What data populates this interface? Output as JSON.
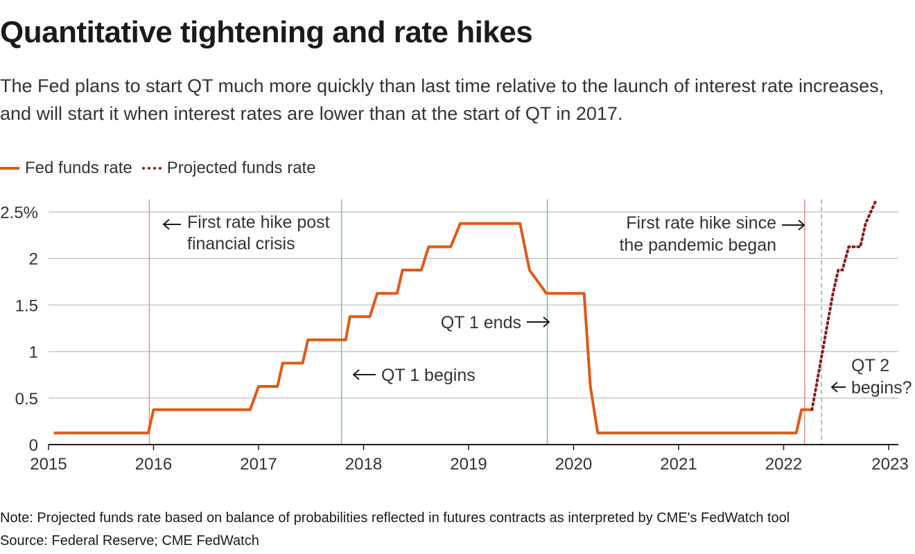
{
  "title": "Quantitative tightening and rate hikes",
  "subtitle": "The Fed plans to start QT much more quickly than last time relative to the launch of interest rate increases, and will start it when interest rates are lower than at the start of QT in 2017.",
  "legend": {
    "fed_funds": "Fed funds rate",
    "projected": "Projected funds rate"
  },
  "colors": {
    "fed_funds": "#e05a16",
    "projected": "#8b1a1a",
    "hike_line": "#e0958f",
    "qt_line": "#7cc48a",
    "grid": "#c8c8c8",
    "axis": "#1a1a1a",
    "text": "#333333"
  },
  "notes": {
    "note": "Note: Projected funds rate based on balance of probabilities reflected in futures contracts as interpreted by CME's FedWatch tool",
    "source": "Source: Federal Reserve; CME FedWatch"
  },
  "chart_data": {
    "type": "line",
    "title": "Quantitative tightening and rate hikes",
    "xlabel": "",
    "ylabel": "",
    "xlim": [
      2015,
      2023
    ],
    "ylim": [
      0,
      2.5
    ],
    "grid": true,
    "legend_position": "top-left",
    "x_ticks": [
      {
        "value": 2015,
        "label": "2015"
      },
      {
        "value": 2016,
        "label": "2016"
      },
      {
        "value": 2017,
        "label": "2017"
      },
      {
        "value": 2018,
        "label": "2018"
      },
      {
        "value": 2019,
        "label": "2019"
      },
      {
        "value": 2020,
        "label": "2020"
      },
      {
        "value": 2021,
        "label": "2021"
      },
      {
        "value": 2022,
        "label": "2022"
      },
      {
        "value": 2023,
        "label": "2023"
      }
    ],
    "y_ticks": [
      {
        "value": 0,
        "label": "0"
      },
      {
        "value": 0.5,
        "label": "0.5"
      },
      {
        "value": 1,
        "label": "1"
      },
      {
        "value": 1.5,
        "label": "1.5"
      },
      {
        "value": 2,
        "label": "2"
      },
      {
        "value": 2.5,
        "label": "2.5%"
      }
    ],
    "series": [
      {
        "name": "Fed funds rate",
        "style": "solid",
        "x": [
          2015.05,
          2015.95,
          2016.0,
          2016.92,
          2017.0,
          2017.18,
          2017.23,
          2017.42,
          2017.47,
          2017.83,
          2017.87,
          2018.06,
          2018.13,
          2018.32,
          2018.37,
          2018.55,
          2018.62,
          2018.83,
          2018.92,
          2019.49,
          2019.58,
          2019.74,
          2019.82,
          2020.1,
          2020.16,
          2020.23,
          2022.12,
          2022.17,
          2022.27
        ],
        "y": [
          0.125,
          0.125,
          0.375,
          0.375,
          0.625,
          0.625,
          0.875,
          0.875,
          1.125,
          1.125,
          1.375,
          1.375,
          1.625,
          1.625,
          1.875,
          1.875,
          2.125,
          2.125,
          2.375,
          2.375,
          1.875,
          1.625,
          1.625,
          1.625,
          0.625,
          0.125,
          0.125,
          0.375,
          0.375
        ]
      },
      {
        "name": "Projected funds rate",
        "style": "dotted",
        "x": [
          2022.27,
          2022.31,
          2022.35,
          2022.39,
          2022.43,
          2022.47,
          2022.52,
          2022.56,
          2022.62,
          2022.68,
          2022.73,
          2022.78,
          2022.83,
          2022.88
        ],
        "y": [
          0.375,
          0.625,
          0.875,
          1.125,
          1.375,
          1.625,
          1.875,
          1.875,
          2.125,
          2.125,
          2.125,
          2.375,
          2.5,
          2.625
        ]
      }
    ],
    "reference_lines": [
      {
        "x": 2015.96,
        "kind": "hike",
        "style": "solid"
      },
      {
        "x": 2017.79,
        "kind": "qt",
        "style": "solid"
      },
      {
        "x": 2019.75,
        "kind": "qt",
        "style": "solid"
      },
      {
        "x": 2022.2,
        "kind": "hike",
        "style": "solid"
      },
      {
        "x": 2022.36,
        "kind": "qt",
        "style": "dashed"
      }
    ],
    "annotations": [
      {
        "lines": [
          "First rate hike post",
          "financial crisis"
        ],
        "arrow": "left",
        "x": 2015.96
      },
      {
        "lines": [
          "QT 1 begins"
        ],
        "arrow": "left",
        "x": 2017.79
      },
      {
        "lines": [
          "QT 1 ends"
        ],
        "arrow": "right",
        "x": 2019.75
      },
      {
        "lines": [
          "First rate hike since",
          "the pandemic  began"
        ],
        "arrow": "right",
        "x": 2022.2
      },
      {
        "lines": [
          "QT 2",
          "begins?"
        ],
        "arrow": "left",
        "x": 2022.36
      }
    ]
  }
}
